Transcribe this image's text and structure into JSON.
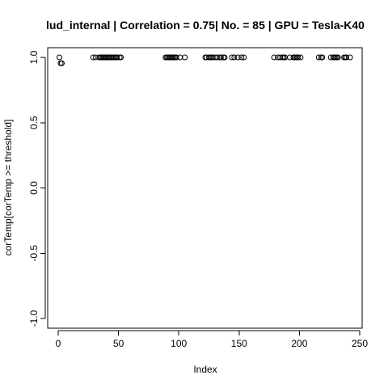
{
  "chart_data": {
    "type": "scatter",
    "title": "lud_internal | Correlation = 0.75| No. = 85 | GPU = Tesla-K40",
    "xlabel": "Index",
    "ylabel": "corTemp[corTemp >= threshold]",
    "xlim": [
      -8,
      250
    ],
    "ylim": [
      -1.0,
      1.0
    ],
    "x_ticks": [
      0,
      50,
      100,
      150,
      200,
      250
    ],
    "y_ticks": [
      1.0,
      0.5,
      0.0,
      -0.5,
      -1.0
    ],
    "x_tick_labels": [
      "0",
      "50",
      "100",
      "150",
      "200",
      "250"
    ],
    "y_tick_labels": [
      "1.0",
      "0.5",
      "0.0",
      "-0.5",
      "-1.0"
    ],
    "grid": false,
    "legend": "none",
    "point_color": "#000000",
    "x": [
      1,
      2,
      3,
      29,
      31,
      34,
      35,
      36,
      37,
      38,
      39,
      40,
      41,
      42,
      43,
      44,
      45,
      46,
      47,
      48,
      49,
      51,
      52,
      89,
      90,
      91,
      92,
      93,
      94,
      95,
      96,
      97,
      98,
      101,
      105,
      122,
      123,
      125,
      126,
      127,
      128,
      130,
      132,
      134,
      135,
      137,
      138,
      144,
      146,
      149,
      152,
      154,
      179,
      182,
      184,
      186,
      187,
      188,
      192,
      195,
      196,
      197,
      198,
      199,
      201,
      216,
      218,
      219,
      226,
      228,
      229,
      230,
      231,
      232,
      237,
      238,
      239,
      242
    ],
    "y": [
      1.0,
      0.955,
      0.955,
      1.0,
      1.0,
      1.0,
      1.0,
      1.0,
      1.0,
      1.0,
      1.0,
      1.0,
      1.0,
      1.0,
      1.0,
      1.0,
      1.0,
      1.0,
      1.0,
      1.0,
      1.0,
      1.0,
      1.0,
      1.0,
      1.0,
      1.0,
      1.0,
      1.0,
      1.0,
      1.0,
      1.0,
      1.0,
      1.0,
      1.0,
      1.0,
      1.0,
      1.0,
      1.0,
      1.0,
      1.0,
      1.0,
      1.0,
      1.0,
      1.0,
      1.0,
      1.0,
      1.0,
      1.0,
      1.0,
      1.0,
      1.0,
      1.0,
      1.0,
      1.0,
      1.0,
      1.0,
      1.0,
      1.0,
      1.0,
      1.0,
      1.0,
      1.0,
      1.0,
      1.0,
      1.0,
      1.0,
      1.0,
      1.0,
      1.0,
      1.0,
      1.0,
      1.0,
      1.0,
      1.0,
      1.0,
      1.0,
      1.0,
      1.0
    ]
  }
}
